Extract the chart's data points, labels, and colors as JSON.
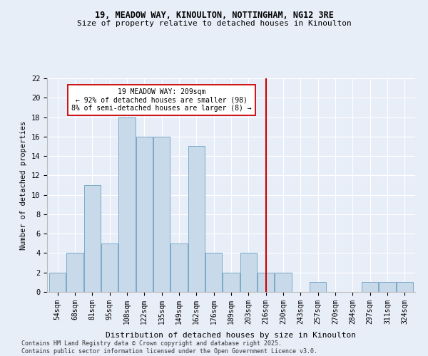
{
  "title1": "19, MEADOW WAY, KINOULTON, NOTTINGHAM, NG12 3RE",
  "title2": "Size of property relative to detached houses in Kinoulton",
  "xlabel": "Distribution of detached houses by size in Kinoulton",
  "ylabel": "Number of detached properties",
  "categories": [
    "54sqm",
    "68sqm",
    "81sqm",
    "95sqm",
    "108sqm",
    "122sqm",
    "135sqm",
    "149sqm",
    "162sqm",
    "176sqm",
    "189sqm",
    "203sqm",
    "216sqm",
    "230sqm",
    "243sqm",
    "257sqm",
    "270sqm",
    "284sqm",
    "297sqm",
    "311sqm",
    "324sqm"
  ],
  "values": [
    2,
    4,
    11,
    5,
    18,
    16,
    16,
    5,
    15,
    4,
    2,
    4,
    2,
    2,
    0,
    1,
    0,
    0,
    1,
    1,
    1
  ],
  "bar_color": "#c8d9ea",
  "bar_edge_color": "#7aaac8",
  "ref_line_x": 12.0,
  "ref_line_color": "#cc0000",
  "annotation_text": "19 MEADOW WAY: 209sqm\n← 92% of detached houses are smaller (98)\n8% of semi-detached houses are larger (8) →",
  "annotation_box_color": "#ffffff",
  "annotation_box_edge": "#cc0000",
  "ylim": [
    0,
    22
  ],
  "yticks": [
    0,
    2,
    4,
    6,
    8,
    10,
    12,
    14,
    16,
    18,
    20,
    22
  ],
  "footnote": "Contains HM Land Registry data © Crown copyright and database right 2025.\nContains public sector information licensed under the Open Government Licence v3.0.",
  "bg_color": "#e8eef8",
  "plot_bg_color": "#e8eef8"
}
